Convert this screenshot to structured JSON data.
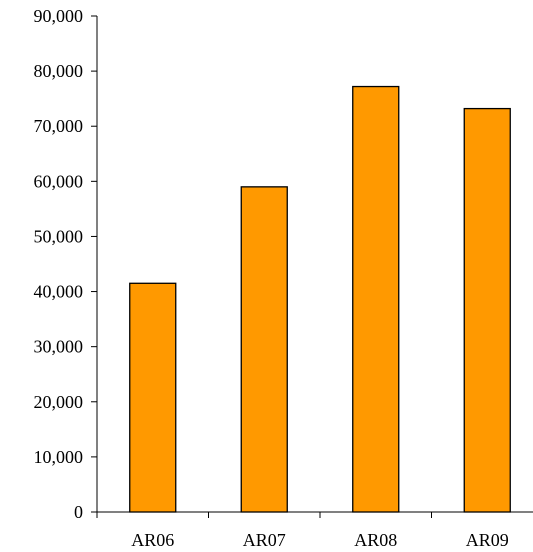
{
  "chart_data": {
    "type": "bar",
    "title": "",
    "xlabel": "",
    "ylabel": "",
    "categories": [
      "AR06",
      "AR07",
      "AR08",
      "AR09"
    ],
    "values": [
      41500,
      59000,
      77200,
      73200
    ],
    "ylim": [
      0,
      90000
    ],
    "yticks": [
      0,
      10000,
      20000,
      30000,
      40000,
      50000,
      60000,
      70000,
      80000,
      90000
    ],
    "ytick_labels": [
      "0",
      "10,000",
      "20,000",
      "30,000",
      "40,000",
      "50,000",
      "60,000",
      "70,000",
      "80,000",
      "90,000"
    ],
    "grid": false,
    "legend": "none",
    "bar_color": "#FF9900",
    "edge_color": "#000000"
  }
}
